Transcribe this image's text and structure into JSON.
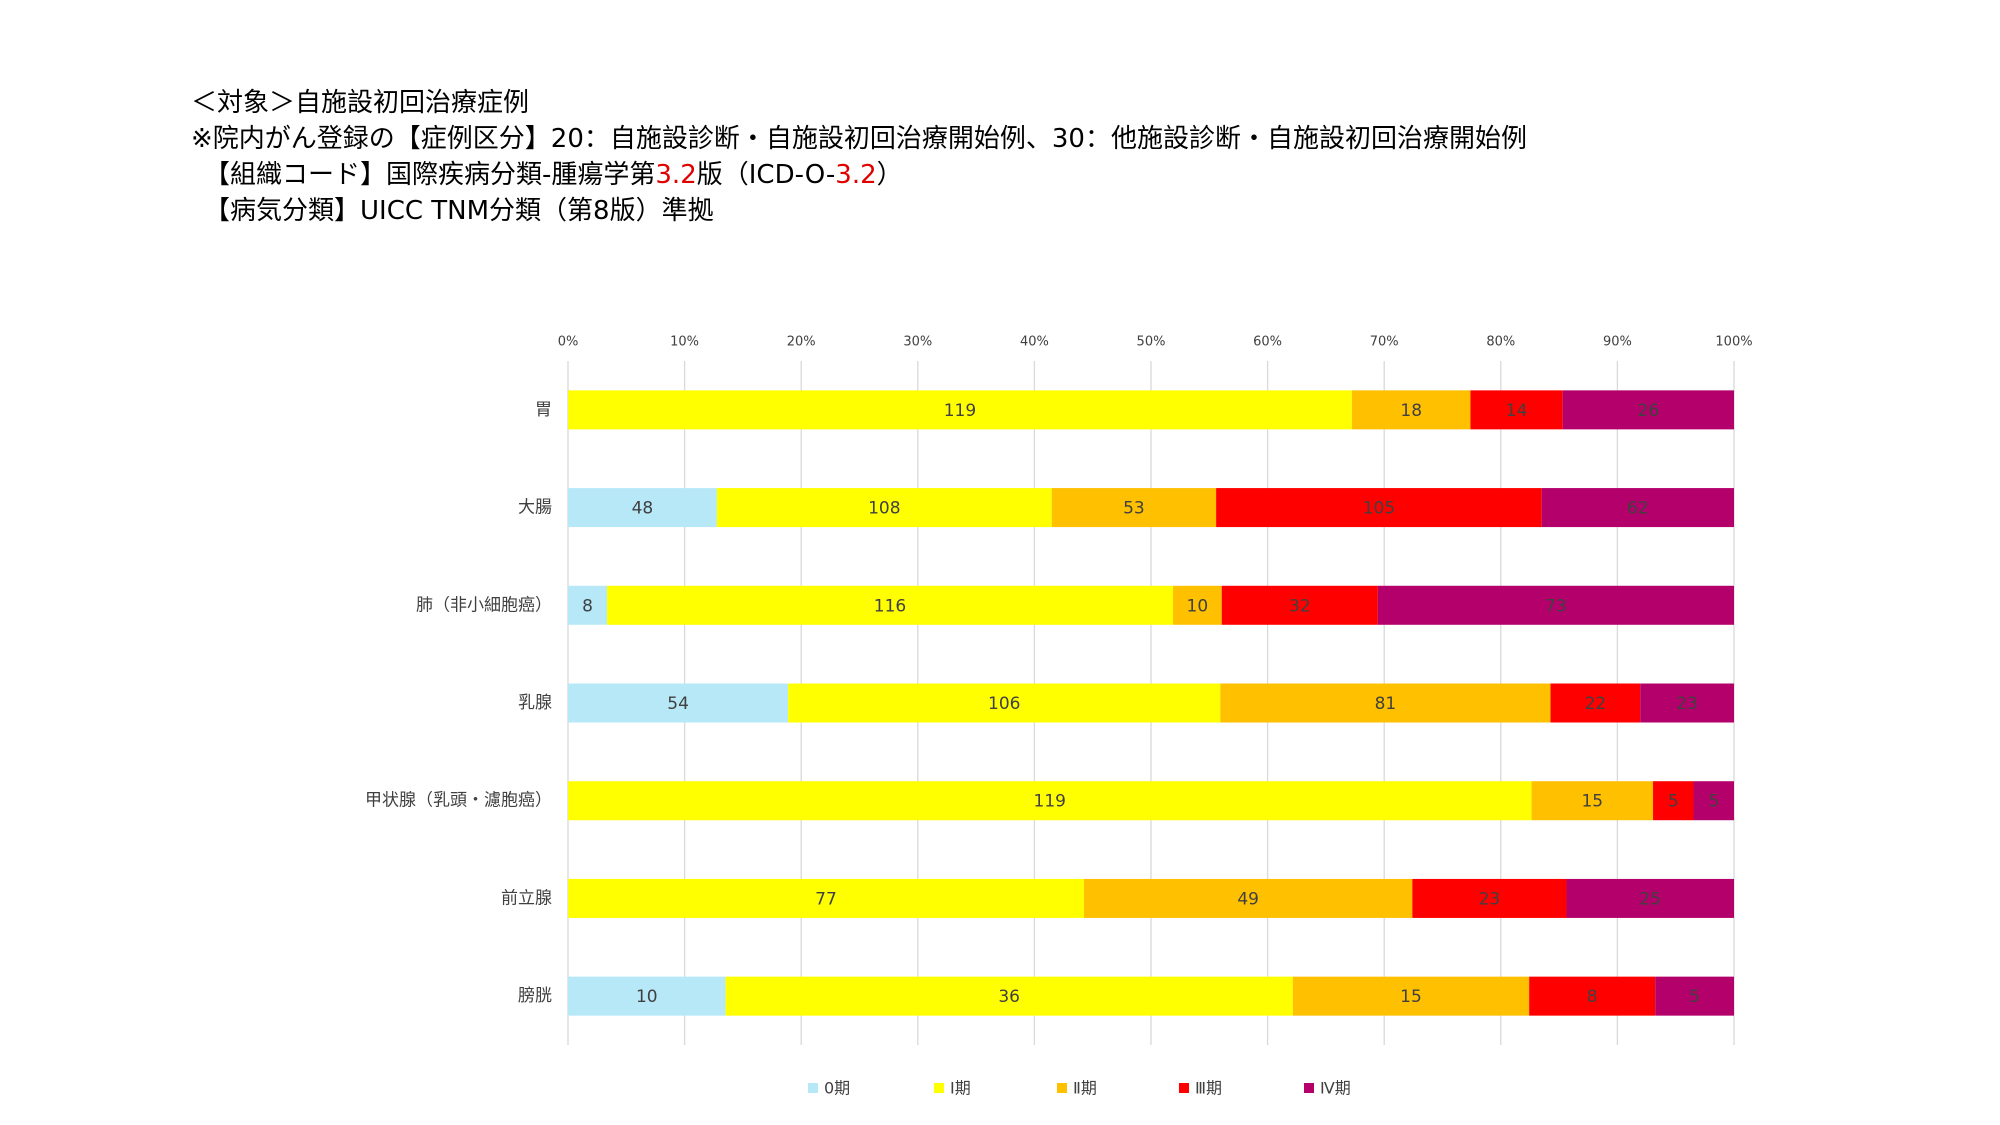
{
  "header": {
    "accent_color": "#e00000",
    "lines": [
      [
        "＜対象＞自施設初回治療症例"
      ],
      [
        "※院内がん登録の【症例区分】20：自施設診断・自施設初回治療開始例、30：他施設診断・自施設初回治療開始例"
      ],
      [
        "　【組織コード】国際疾病分類-腫瘍学第",
        "3.2",
        "版（ICD-O-",
        "3.2",
        "）"
      ],
      [
        "　【病気分類】UICC TNM分類（第8版）準拠"
      ]
    ]
  },
  "chart_data": {
    "type": "stacked_percent_bar",
    "categories": [
      "胃",
      "大腸",
      "肺（非小細胞癌）",
      "乳腺",
      "甲状腺（乳頭・濾胞癌）",
      "前立腺",
      "膀胱"
    ],
    "series": [
      {
        "name": "0期",
        "color": "#b7e8f8",
        "values": [
          null,
          48,
          8,
          54,
          null,
          null,
          10
        ]
      },
      {
        "name": "Ⅰ期",
        "color": "#ffff00",
        "values": [
          119,
          108,
          116,
          106,
          119,
          77,
          36
        ]
      },
      {
        "name": "Ⅱ期",
        "color": "#ffc000",
        "values": [
          18,
          53,
          10,
          81,
          15,
          49,
          15
        ]
      },
      {
        "name": "Ⅲ期",
        "color": "#ff0000",
        "values": [
          14,
          105,
          32,
          22,
          5,
          23,
          8
        ]
      },
      {
        "name": "Ⅳ期",
        "color": "#b3006b",
        "values": [
          26,
          62,
          73,
          23,
          5,
          25,
          5
        ]
      }
    ],
    "xlim": [
      0,
      100
    ],
    "xticks": [
      {
        "value": 0,
        "label": "0%"
      },
      {
        "value": 10,
        "label": "10%"
      },
      {
        "value": 20,
        "label": "20%"
      },
      {
        "value": 30,
        "label": "30%"
      },
      {
        "value": 40,
        "label": "40%"
      },
      {
        "value": 50,
        "label": "50%"
      },
      {
        "value": 60,
        "label": "60%"
      },
      {
        "value": 70,
        "label": "70%"
      },
      {
        "value": 80,
        "label": "80%"
      },
      {
        "value": 90,
        "label": "90%"
      },
      {
        "value": 100,
        "label": "100%"
      }
    ],
    "grid": true,
    "legend": "bottom"
  }
}
